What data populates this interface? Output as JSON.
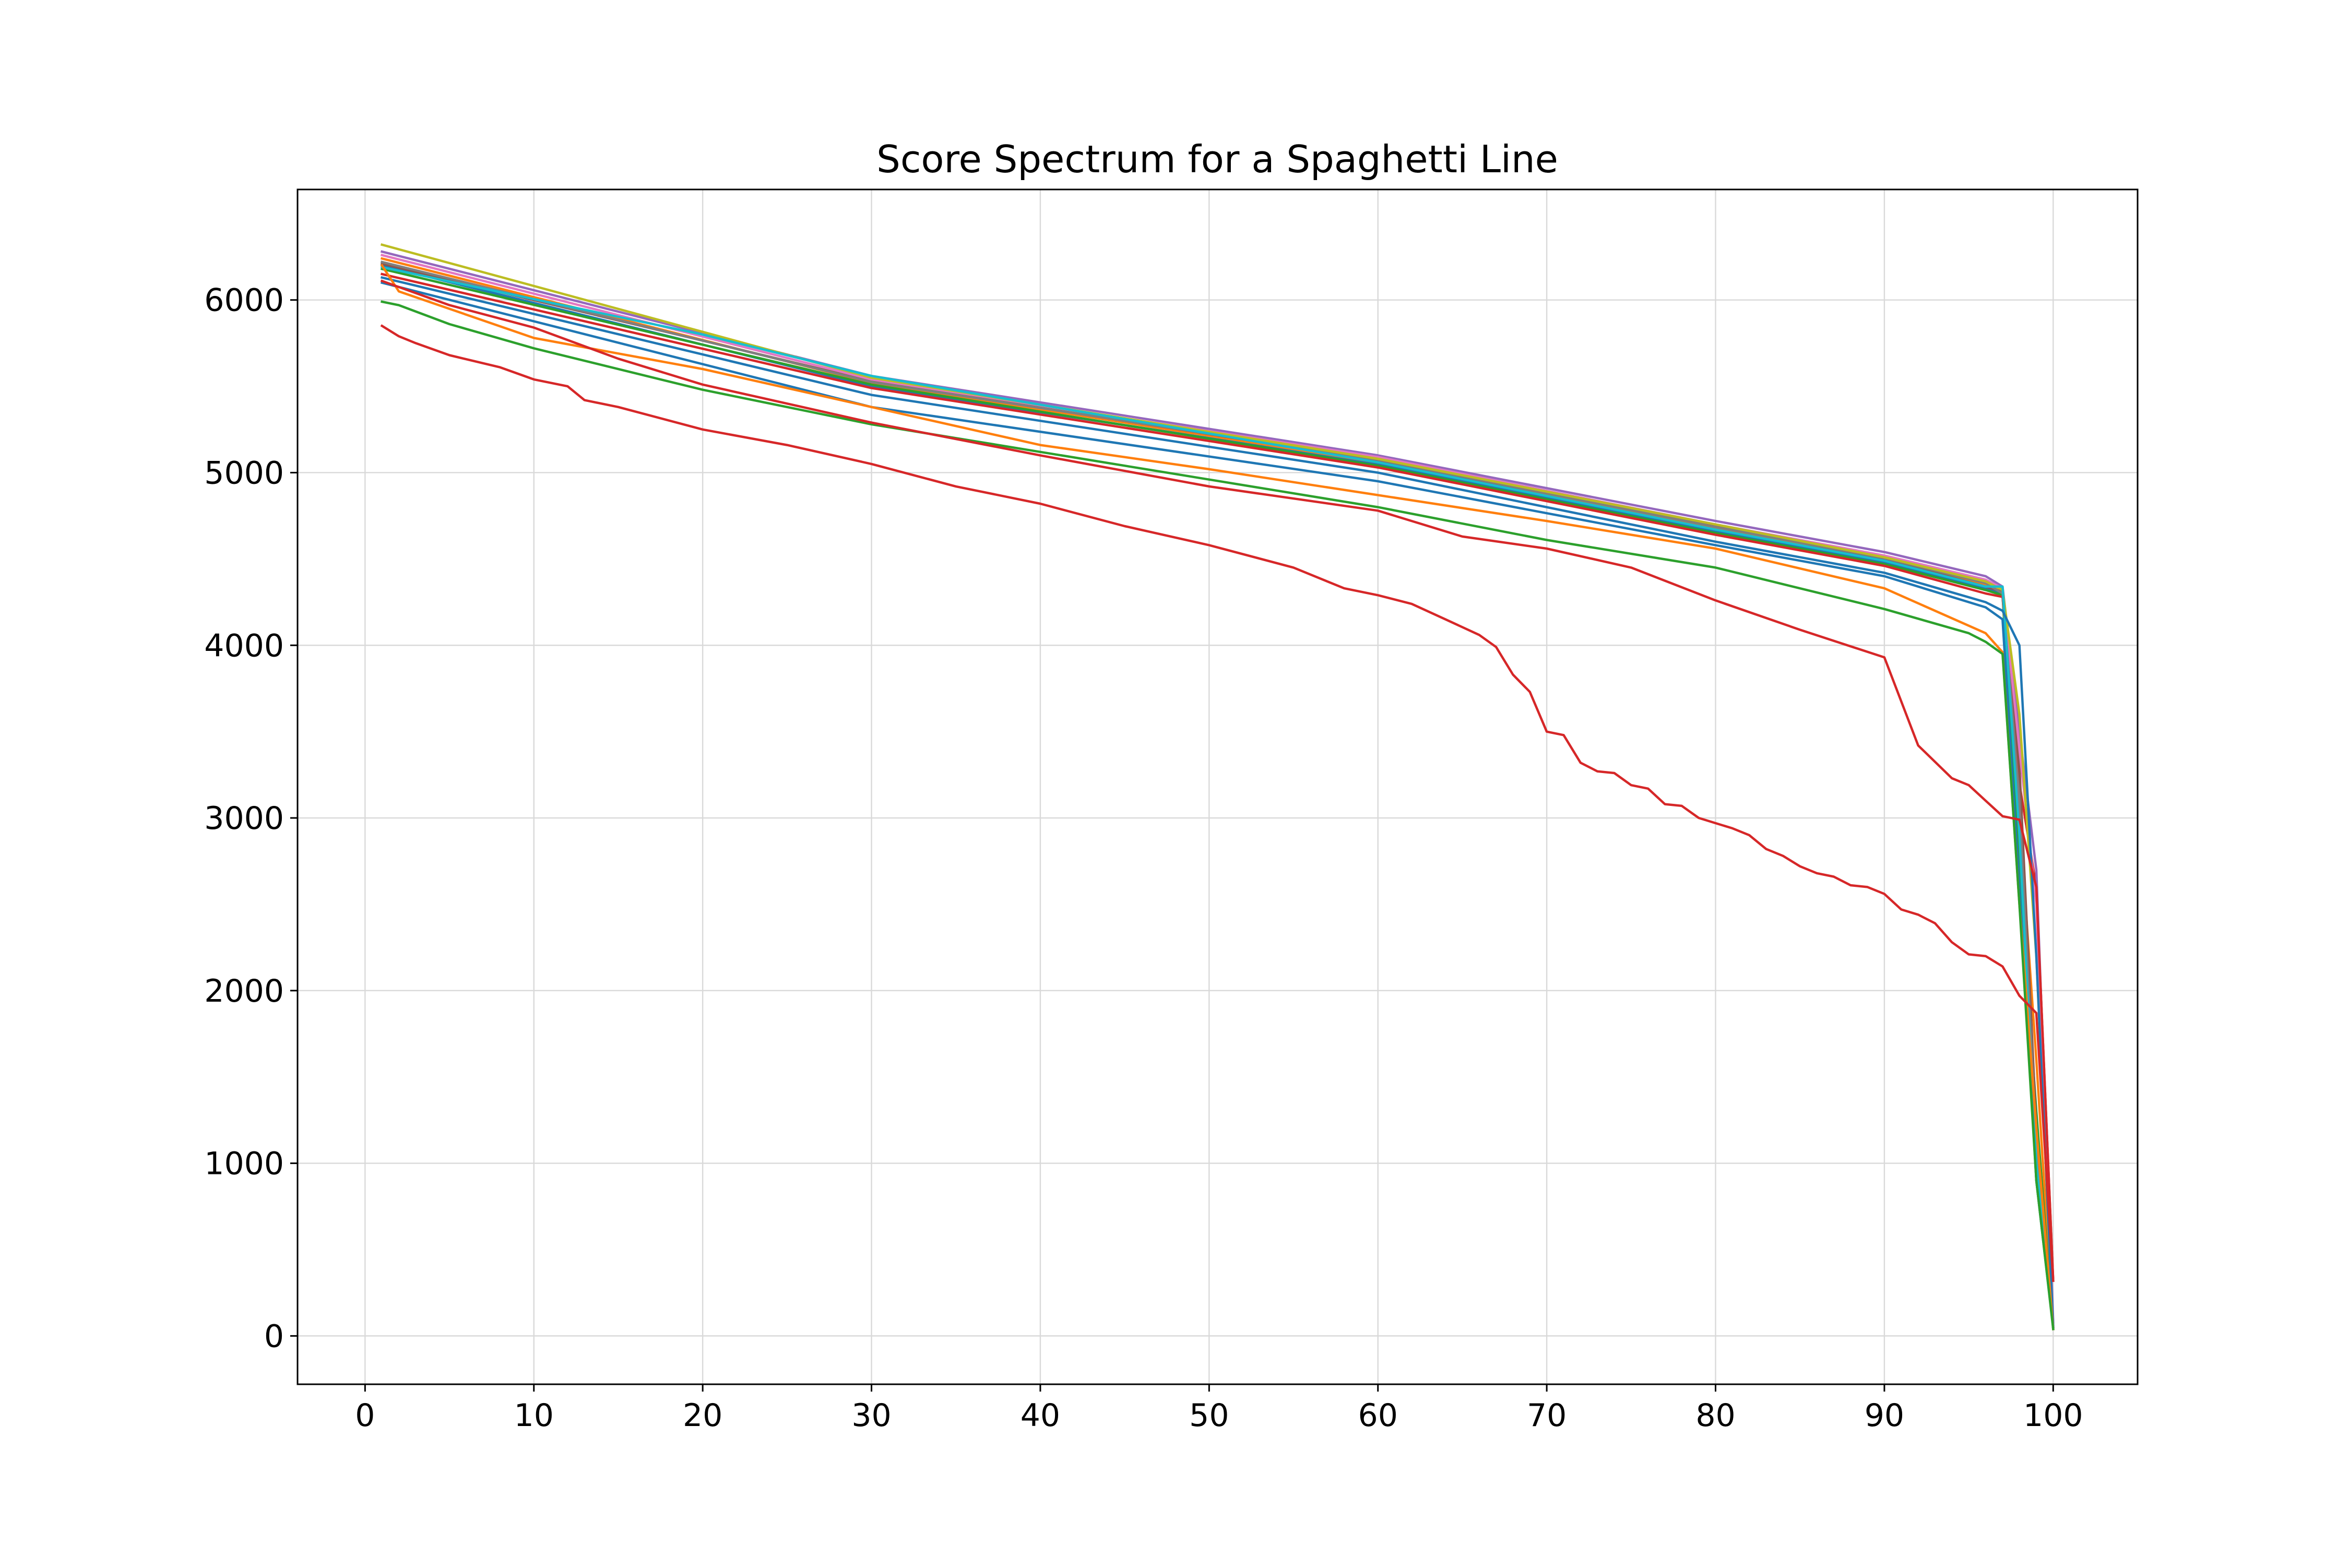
{
  "chart_data": {
    "type": "line",
    "title": "Score Spectrum for a Spaghetti Line",
    "xlabel": "",
    "ylabel": "",
    "xlim": [
      -4,
      105
    ],
    "ylim": [
      -280,
      6640
    ],
    "xticks": [
      0,
      10,
      20,
      30,
      40,
      50,
      60,
      70,
      80,
      90,
      100
    ],
    "yticks": [
      0,
      1000,
      2000,
      3000,
      4000,
      5000,
      6000
    ],
    "grid": true,
    "legend": "none",
    "series": [
      {
        "color": "#1f77b4",
        "points": [
          [
            1,
            6200
          ],
          [
            30,
            5500
          ],
          [
            60,
            5050
          ],
          [
            80,
            4660
          ],
          [
            90,
            4480
          ],
          [
            96,
            4330
          ],
          [
            97,
            4300
          ],
          [
            98,
            2800
          ],
          [
            99,
            900
          ],
          [
            100,
            50
          ]
        ]
      },
      {
        "color": "#ff7f0e",
        "points": [
          [
            1,
            6240
          ],
          [
            30,
            5520
          ],
          [
            60,
            5060
          ],
          [
            80,
            4680
          ],
          [
            90,
            4500
          ],
          [
            96,
            4350
          ],
          [
            97,
            4320
          ],
          [
            98,
            3000
          ],
          [
            99,
            1600
          ],
          [
            100,
            60
          ]
        ]
      },
      {
        "color": "#2ca02c",
        "points": [
          [
            1,
            6180
          ],
          [
            30,
            5510
          ],
          [
            60,
            5040
          ],
          [
            80,
            4650
          ],
          [
            90,
            4470
          ],
          [
            96,
            4320
          ],
          [
            97,
            4290
          ],
          [
            98,
            2700
          ],
          [
            99,
            1300
          ],
          [
            100,
            40
          ]
        ]
      },
      {
        "color": "#d62728",
        "points": [
          [
            1,
            6150
          ],
          [
            30,
            5490
          ],
          [
            60,
            5030
          ],
          [
            80,
            4640
          ],
          [
            90,
            4460
          ],
          [
            96,
            4300
          ],
          [
            97,
            4280
          ],
          [
            98,
            3200
          ],
          [
            99,
            2600
          ],
          [
            100,
            320
          ]
        ]
      },
      {
        "color": "#9467bd",
        "points": [
          [
            1,
            6280
          ],
          [
            30,
            5560
          ],
          [
            60,
            5100
          ],
          [
            80,
            4720
          ],
          [
            90,
            4540
          ],
          [
            96,
            4400
          ],
          [
            97,
            4340
          ],
          [
            98,
            3500
          ],
          [
            99,
            2700
          ],
          [
            100,
            80
          ]
        ]
      },
      {
        "color": "#8c564b",
        "points": [
          [
            1,
            6210
          ],
          [
            30,
            5530
          ],
          [
            60,
            5070
          ],
          [
            80,
            4690
          ],
          [
            90,
            4500
          ],
          [
            96,
            4340
          ],
          [
            97,
            4310
          ],
          [
            98,
            3300
          ],
          [
            99,
            1200
          ],
          [
            100,
            50
          ]
        ]
      },
      {
        "color": "#e377c2",
        "points": [
          [
            1,
            6260
          ],
          [
            30,
            5540
          ],
          [
            60,
            5090
          ],
          [
            80,
            4700
          ],
          [
            90,
            4520
          ],
          [
            96,
            4380
          ],
          [
            97,
            4330
          ],
          [
            98,
            3400
          ],
          [
            99,
            2500
          ],
          [
            100,
            60
          ]
        ]
      },
      {
        "color": "#7f7f7f",
        "points": [
          [
            1,
            6220
          ],
          [
            30,
            5525
          ],
          [
            60,
            5075
          ],
          [
            80,
            4685
          ],
          [
            90,
            4505
          ],
          [
            96,
            4360
          ],
          [
            97,
            4300
          ],
          [
            98,
            3100
          ],
          [
            99,
            1100
          ],
          [
            100,
            50
          ]
        ]
      },
      {
        "color": "#bcbd22",
        "points": [
          [
            1,
            6320
          ],
          [
            30,
            5550
          ],
          [
            60,
            5080
          ],
          [
            80,
            4700
          ],
          [
            90,
            4510
          ],
          [
            96,
            4370
          ],
          [
            97,
            4320
          ],
          [
            98,
            3600
          ],
          [
            99,
            2200
          ],
          [
            100,
            40
          ]
        ]
      },
      {
        "color": "#17becf",
        "points": [
          [
            1,
            6190
          ],
          [
            20,
            5800
          ],
          [
            30,
            5560
          ],
          [
            60,
            5060
          ],
          [
            80,
            4670
          ],
          [
            90,
            4490
          ],
          [
            96,
            4340
          ],
          [
            97,
            4340
          ],
          [
            98,
            2900
          ],
          [
            99,
            1000
          ],
          [
            100,
            50
          ]
        ]
      },
      {
        "color": "#1f77b4",
        "points": [
          [
            1,
            6130
          ],
          [
            30,
            5450
          ],
          [
            60,
            5000
          ],
          [
            80,
            4600
          ],
          [
            90,
            4420
          ],
          [
            96,
            4250
          ],
          [
            97,
            4200
          ],
          [
            98,
            4000
          ],
          [
            99,
            2200
          ],
          [
            100,
            60
          ]
        ]
      },
      {
        "color": "#1f77b4",
        "points": [
          [
            1,
            6100
          ],
          [
            30,
            5380
          ],
          [
            60,
            4950
          ],
          [
            80,
            4580
          ],
          [
            90,
            4400
          ],
          [
            96,
            4220
          ],
          [
            97,
            4150
          ],
          [
            98,
            2600
          ],
          [
            99,
            900
          ],
          [
            100,
            50
          ]
        ]
      },
      {
        "color": "#ff7f0e",
        "points": [
          [
            1,
            6200
          ],
          [
            2,
            6050
          ],
          [
            10,
            5780
          ],
          [
            20,
            5600
          ],
          [
            30,
            5380
          ],
          [
            40,
            5160
          ],
          [
            50,
            5020
          ],
          [
            60,
            4870
          ],
          [
            70,
            4720
          ],
          [
            80,
            4560
          ],
          [
            90,
            4330
          ],
          [
            96,
            4070
          ],
          [
            97,
            3960
          ],
          [
            98,
            2500
          ],
          [
            99,
            1200
          ],
          [
            100,
            40
          ]
        ]
      },
      {
        "color": "#2ca02c",
        "points": [
          [
            1,
            5990
          ],
          [
            2,
            5970
          ],
          [
            5,
            5860
          ],
          [
            10,
            5720
          ],
          [
            20,
            5480
          ],
          [
            30,
            5280
          ],
          [
            40,
            5120
          ],
          [
            50,
            4960
          ],
          [
            60,
            4800
          ],
          [
            70,
            4610
          ],
          [
            80,
            4450
          ],
          [
            90,
            4210
          ],
          [
            95,
            4070
          ],
          [
            96,
            4020
          ],
          [
            97,
            3950
          ],
          [
            98,
            2500
          ],
          [
            99,
            900
          ],
          [
            100,
            40
          ]
        ]
      },
      {
        "color": "#d62728",
        "points": [
          [
            1,
            6110
          ],
          [
            5,
            5970
          ],
          [
            10,
            5840
          ],
          [
            15,
            5660
          ],
          [
            20,
            5510
          ],
          [
            25,
            5400
          ],
          [
            30,
            5290
          ],
          [
            40,
            5100
          ],
          [
            50,
            4920
          ],
          [
            60,
            4780
          ],
          [
            65,
            4630
          ],
          [
            70,
            4560
          ],
          [
            75,
            4450
          ],
          [
            80,
            4260
          ],
          [
            85,
            4090
          ],
          [
            90,
            3930
          ],
          [
            92,
            3420
          ],
          [
            94,
            3230
          ],
          [
            95,
            3190
          ],
          [
            96,
            3100
          ],
          [
            97,
            3010
          ],
          [
            98,
            2990
          ],
          [
            99,
            2600
          ],
          [
            100,
            320
          ]
        ]
      },
      {
        "color": "#d62728",
        "points": [
          [
            1,
            5850
          ],
          [
            2,
            5790
          ],
          [
            3,
            5750
          ],
          [
            5,
            5680
          ],
          [
            8,
            5610
          ],
          [
            10,
            5540
          ],
          [
            12,
            5500
          ],
          [
            13,
            5420
          ],
          [
            15,
            5380
          ],
          [
            20,
            5250
          ],
          [
            25,
            5160
          ],
          [
            30,
            5050
          ],
          [
            35,
            4920
          ],
          [
            40,
            4820
          ],
          [
            45,
            4690
          ],
          [
            50,
            4580
          ],
          [
            55,
            4450
          ],
          [
            58,
            4330
          ],
          [
            60,
            4290
          ],
          [
            62,
            4240
          ],
          [
            64,
            4150
          ],
          [
            66,
            4060
          ],
          [
            67,
            3990
          ],
          [
            68,
            3830
          ],
          [
            69,
            3730
          ],
          [
            70,
            3500
          ],
          [
            71,
            3480
          ],
          [
            72,
            3320
          ],
          [
            73,
            3270
          ],
          [
            74,
            3260
          ],
          [
            75,
            3190
          ],
          [
            76,
            3170
          ],
          [
            77,
            3080
          ],
          [
            78,
            3070
          ],
          [
            79,
            3000
          ],
          [
            80,
            2970
          ],
          [
            81,
            2940
          ],
          [
            82,
            2900
          ],
          [
            83,
            2820
          ],
          [
            84,
            2780
          ],
          [
            85,
            2720
          ],
          [
            86,
            2680
          ],
          [
            87,
            2660
          ],
          [
            88,
            2610
          ],
          [
            89,
            2600
          ],
          [
            90,
            2560
          ],
          [
            91,
            2470
          ],
          [
            92,
            2440
          ],
          [
            93,
            2390
          ],
          [
            94,
            2280
          ],
          [
            95,
            2210
          ],
          [
            96,
            2200
          ],
          [
            97,
            2140
          ],
          [
            98,
            1970
          ],
          [
            99,
            1870
          ],
          [
            100,
            320
          ]
        ]
      }
    ]
  }
}
